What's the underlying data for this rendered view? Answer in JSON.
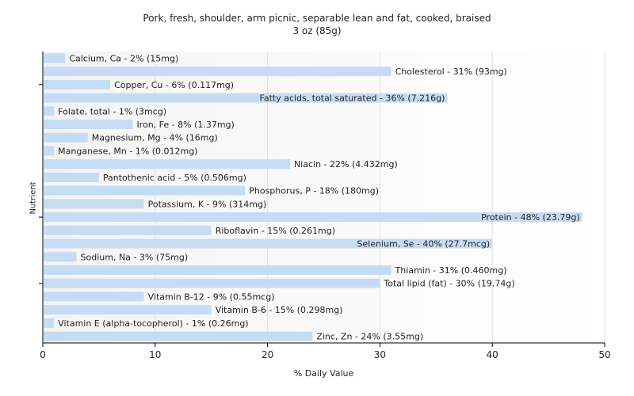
{
  "chart_data": {
    "type": "bar",
    "orientation": "horizontal",
    "title": "Pork, fresh, shoulder, arm picnic, separable lean and fat, cooked, braised",
    "subtitle": "3 oz (85g)",
    "xlabel": "% Daily Value",
    "ylabel": "Nutrient",
    "xlim": [
      0,
      50
    ],
    "xticks": [
      0,
      10,
      20,
      30,
      40,
      50
    ],
    "grid": true,
    "bar_color": "#c6dcf5",
    "categories": [
      "Calcium, Ca",
      "Cholesterol",
      "Copper, Cu",
      "Fatty acids, total saturated",
      "Folate, total",
      "Iron, Fe",
      "Magnesium, Mg",
      "Manganese, Mn",
      "Niacin",
      "Pantothenic acid",
      "Phosphorus, P",
      "Potassium, K",
      "Protein",
      "Riboflavin",
      "Selenium, Se",
      "Sodium, Na",
      "Thiamin",
      "Total lipid (fat)",
      "Vitamin B-12",
      "Vitamin B-6",
      "Vitamin E (alpha-tocopherol)",
      "Zinc, Zn"
    ],
    "values": [
      2,
      31,
      6,
      36,
      1,
      8,
      4,
      1,
      22,
      5,
      18,
      9,
      48,
      15,
      40,
      3,
      31,
      30,
      9,
      15,
      1,
      24
    ],
    "labels": [
      "Calcium, Ca - 2% (15mg)",
      "Cholesterol - 31% (93mg)",
      "Copper, Cu - 6% (0.117mg)",
      "Fatty acids, total saturated - 36% (7.216g)",
      "Folate, total - 1% (3mcg)",
      "Iron, Fe - 8% (1.37mg)",
      "Magnesium, Mg - 4% (16mg)",
      "Manganese, Mn - 1% (0.012mg)",
      "Niacin - 22% (4.432mg)",
      "Pantothenic acid - 5% (0.506mg)",
      "Phosphorus, P - 18% (180mg)",
      "Potassium, K - 9% (314mg)",
      "Protein - 48% (23.79g)",
      "Riboflavin - 15% (0.261mg)",
      "Selenium, Se - 40% (27.7mcg)",
      "Sodium, Na - 3% (75mg)",
      "Thiamin - 31% (0.460mg)",
      "Total lipid (fat) - 30% (19.74g)",
      "Vitamin B-12 - 9% (0.55mcg)",
      "Vitamin B-6 - 15% (0.298mg)",
      "Vitamin E (alpha-tocopherol) - 1% (0.26mg)",
      "Zinc, Zn - 24% (3.55mg)"
    ]
  }
}
